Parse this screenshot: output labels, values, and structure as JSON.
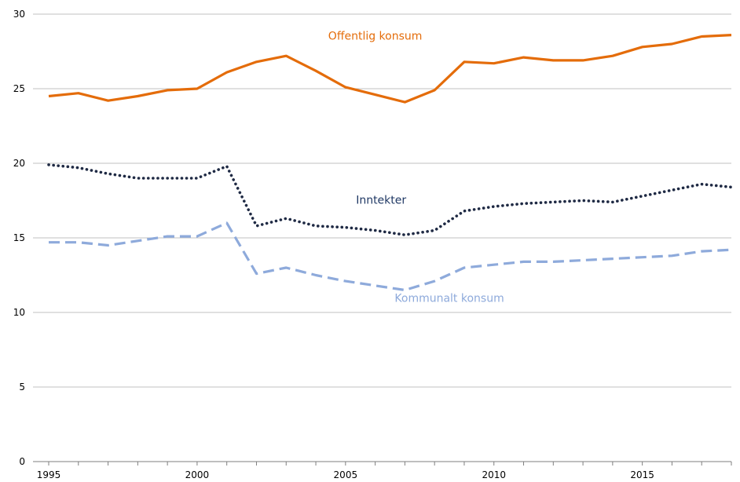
{
  "chart_data": {
    "type": "line",
    "title": "",
    "xlabel": "",
    "ylabel": "",
    "xlim": [
      1995,
      2018
    ],
    "ylim": [
      0,
      30
    ],
    "x_ticks": [
      1995,
      2000,
      2005,
      2010,
      2015
    ],
    "y_ticks": [
      0,
      5,
      10,
      15,
      20,
      25,
      30
    ],
    "grid": "horizontal",
    "legend": "inline labels",
    "x": [
      1995,
      1996,
      1997,
      1998,
      1999,
      2000,
      2001,
      2002,
      2003,
      2004,
      2005,
      2006,
      2007,
      2008,
      2009,
      2010,
      2011,
      2012,
      2013,
      2014,
      2015,
      2016,
      2017,
      2018
    ],
    "series": [
      {
        "name": "Offentlig konsum",
        "color": "#E46C0A",
        "style": "solid",
        "values": [
          24.5,
          24.7,
          24.2,
          24.5,
          24.9,
          25.0,
          26.1,
          26.8,
          27.2,
          26.2,
          25.1,
          24.6,
          24.1,
          24.9,
          26.8,
          26.7,
          27.1,
          26.9,
          26.9,
          27.2,
          27.8,
          28.0,
          28.5,
          28.6
        ]
      },
      {
        "name": "Inntekter",
        "color": "#1F2A44",
        "style": "dotted",
        "values": [
          19.9,
          19.7,
          19.3,
          19.0,
          19.0,
          19.0,
          19.8,
          15.8,
          16.3,
          15.8,
          15.7,
          15.5,
          15.2,
          15.5,
          16.8,
          17.1,
          17.3,
          17.4,
          17.5,
          17.4,
          17.8,
          18.2,
          18.6,
          18.4
        ]
      },
      {
        "name": "Kommunalt konsum",
        "color": "#8EAADB",
        "style": "dashed",
        "values": [
          14.7,
          14.7,
          14.5,
          14.8,
          15.1,
          15.1,
          16.0,
          12.6,
          13.0,
          12.5,
          12.1,
          11.8,
          11.5,
          12.1,
          13.0,
          13.2,
          13.4,
          13.4,
          13.5,
          13.6,
          13.7,
          13.8,
          14.1,
          14.2
        ]
      }
    ],
    "labels": [
      {
        "text": "Offentlig konsum",
        "series": 0,
        "x": 2006.0,
        "y": 28.3
      },
      {
        "text": "Inntekter",
        "series": 1,
        "x": 2006.2,
        "y": 17.3
      },
      {
        "text": "Kommunalt konsum",
        "series": 2,
        "x": 2008.5,
        "y": 10.7
      }
    ]
  }
}
